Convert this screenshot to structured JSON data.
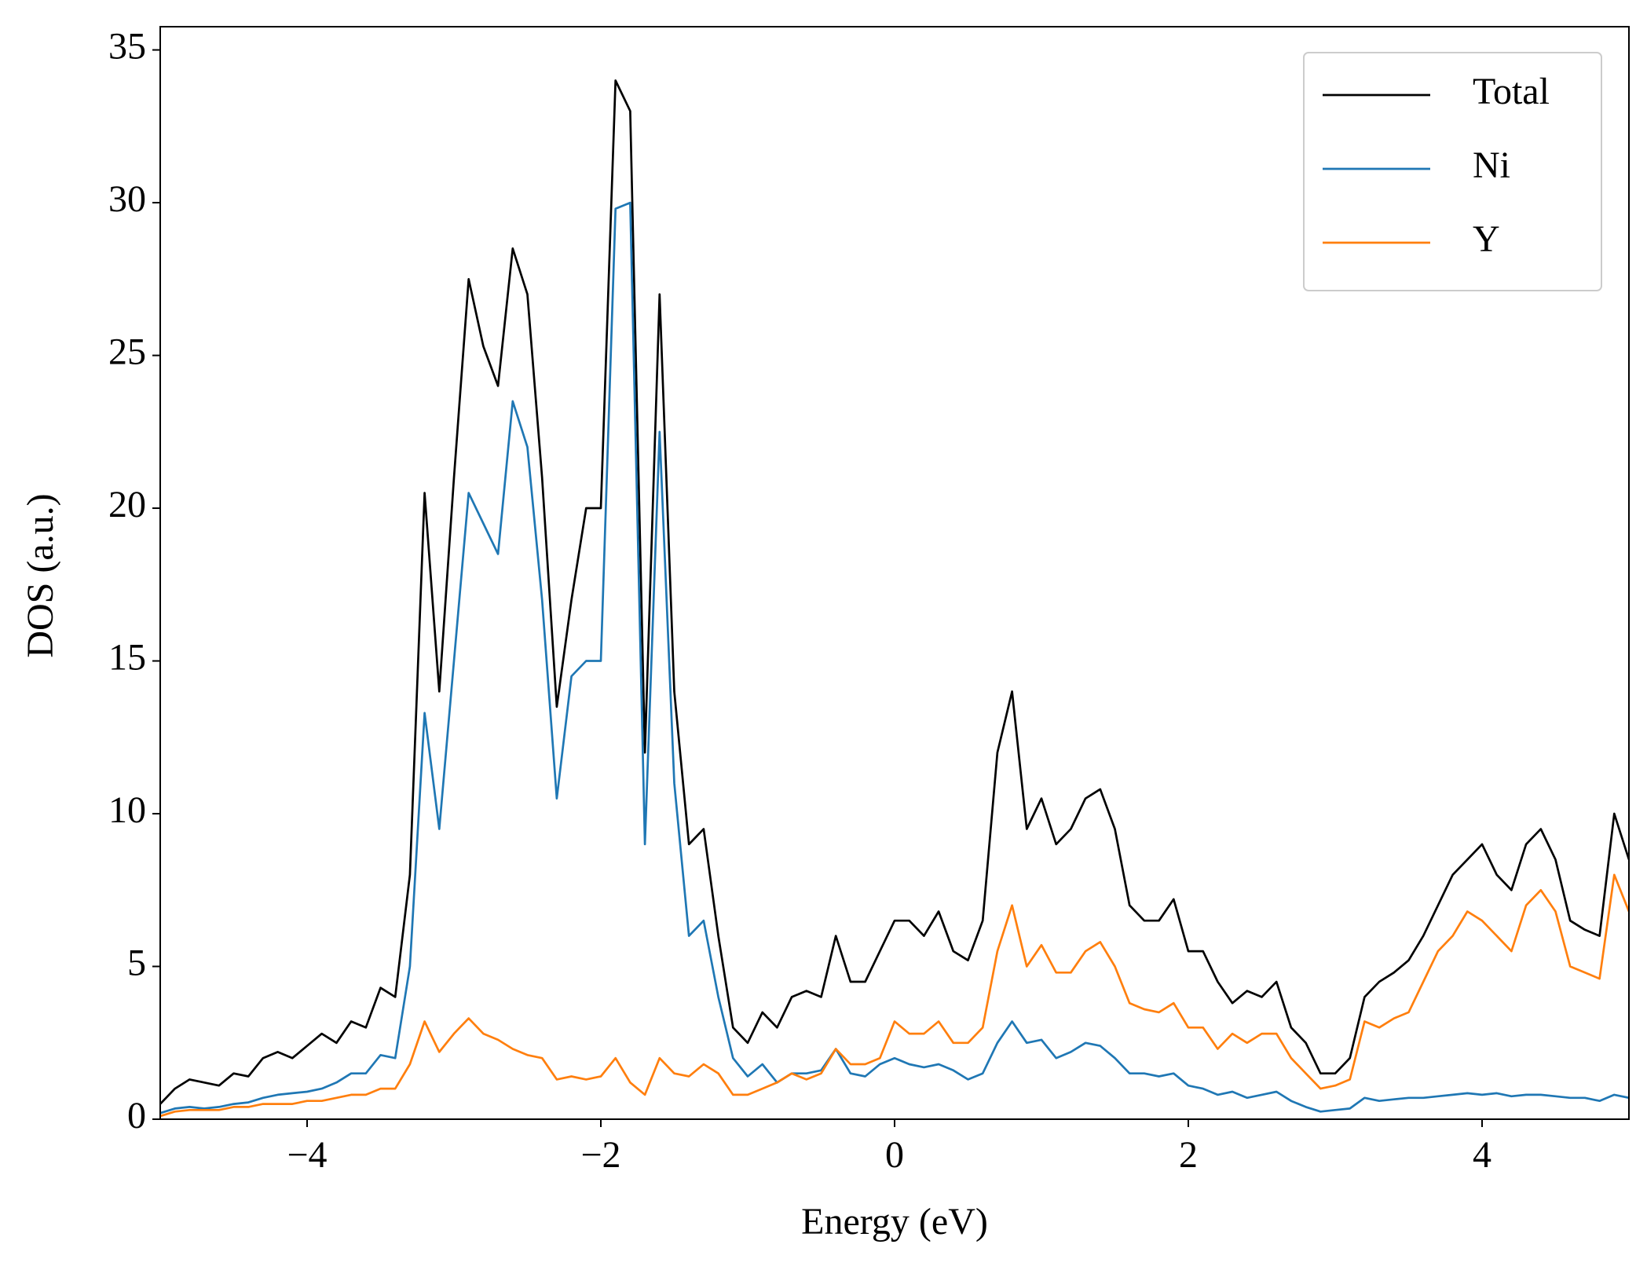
{
  "chart_data": {
    "type": "line",
    "xlabel": "Energy (eV)",
    "ylabel": "DOS (a.u.)",
    "x": [
      -5,
      -4.9,
      -4.8,
      -4.7,
      -4.6,
      -4.5,
      -4.4,
      -4.3,
      -4.2,
      -4.1,
      -4,
      -3.9,
      -3.8,
      -3.7,
      -3.6,
      -3.5,
      -3.4,
      -3.3,
      -3.2,
      -3.1,
      -3,
      -2.9,
      -2.8,
      -2.7,
      -2.6,
      -2.5,
      -2.4,
      -2.3,
      -2.2,
      -2.1,
      -2,
      -1.9,
      -1.8,
      -1.7,
      -1.6,
      -1.5,
      -1.4,
      -1.3,
      -1.2,
      -1.1,
      -1,
      -0.9,
      -0.8,
      -0.7,
      -0.6,
      -0.5,
      -0.4,
      -0.3,
      -0.2,
      -0.1,
      0,
      0.1,
      0.2,
      0.3,
      0.4,
      0.5,
      0.6,
      0.7,
      0.8,
      0.9,
      1,
      1.1,
      1.2,
      1.3,
      1.4,
      1.5,
      1.6,
      1.7,
      1.8,
      1.9,
      2,
      2.1,
      2.2,
      2.3,
      2.4,
      2.5,
      2.6,
      2.7,
      2.8,
      2.9,
      3,
      3.1,
      3.2,
      3.3,
      3.4,
      3.5,
      3.6,
      3.7,
      3.8,
      3.9,
      4,
      4.1,
      4.2,
      4.3,
      4.4,
      4.5,
      4.6,
      4.7,
      4.8,
      4.9,
      5
    ],
    "series": [
      {
        "name": "Total",
        "color": "#000000",
        "values": [
          0.5,
          1.0,
          1.3,
          1.2,
          1.1,
          1.5,
          1.4,
          2.0,
          2.2,
          2.0,
          2.4,
          2.8,
          2.5,
          3.2,
          3.0,
          4.3,
          4.0,
          8,
          20.5,
          14,
          21,
          27.5,
          25.3,
          24,
          28.5,
          27,
          21,
          13.5,
          17,
          20,
          20,
          34,
          33,
          12,
          27,
          14,
          9,
          9.5,
          6,
          3,
          2.5,
          3.5,
          3.0,
          4.0,
          4.2,
          4.0,
          6.0,
          4.5,
          4.5,
          5.5,
          6.5,
          6.5,
          6.0,
          6.8,
          5.5,
          5.2,
          6.5,
          12,
          14,
          9.5,
          10.5,
          9.0,
          9.5,
          10.5,
          10.8,
          9.5,
          7.0,
          6.5,
          6.5,
          7.2,
          5.5,
          5.5,
          4.5,
          3.8,
          4.2,
          4.0,
          4.5,
          3.0,
          2.5,
          1.5,
          1.5,
          2.0,
          4.0,
          4.5,
          4.8,
          5.2,
          6.0,
          7.0,
          8.0,
          8.5,
          9.0,
          8.0,
          7.5,
          9.0,
          9.5,
          8.5,
          6.5,
          6.2,
          6.0,
          10.0,
          8.5
        ]
      },
      {
        "name": "Ni",
        "color": "#1f77b4",
        "values": [
          0.2,
          0.35,
          0.4,
          0.35,
          0.4,
          0.5,
          0.55,
          0.7,
          0.8,
          0.85,
          0.9,
          1.0,
          1.2,
          1.5,
          1.5,
          2.1,
          2.0,
          5,
          13.3,
          9.5,
          15,
          20.5,
          19.5,
          18.5,
          23.5,
          22,
          17,
          10.5,
          14.5,
          15,
          15,
          29.8,
          30,
          9,
          22.5,
          11,
          6,
          6.5,
          4,
          2,
          1.4,
          1.8,
          1.2,
          1.5,
          1.5,
          1.6,
          2.3,
          1.5,
          1.4,
          1.8,
          2.0,
          1.8,
          1.7,
          1.8,
          1.6,
          1.3,
          1.5,
          2.5,
          3.2,
          2.5,
          2.6,
          2.0,
          2.2,
          2.5,
          2.4,
          2.0,
          1.5,
          1.5,
          1.4,
          1.5,
          1.1,
          1.0,
          0.8,
          0.9,
          0.7,
          0.8,
          0.9,
          0.6,
          0.4,
          0.25,
          0.3,
          0.35,
          0.7,
          0.6,
          0.65,
          0.7,
          0.7,
          0.75,
          0.8,
          0.85,
          0.8,
          0.85,
          0.75,
          0.8,
          0.8,
          0.75,
          0.7,
          0.7,
          0.6,
          0.8,
          0.7
        ]
      },
      {
        "name": "Y",
        "color": "#ff7f0e",
        "values": [
          0.1,
          0.25,
          0.3,
          0.3,
          0.3,
          0.4,
          0.4,
          0.5,
          0.5,
          0.5,
          0.6,
          0.6,
          0.7,
          0.8,
          0.8,
          1.0,
          1.0,
          1.8,
          3.2,
          2.2,
          2.8,
          3.3,
          2.8,
          2.6,
          2.3,
          2.1,
          2.0,
          1.3,
          1.4,
          1.3,
          1.4,
          2.0,
          1.2,
          0.8,
          2.0,
          1.5,
          1.4,
          1.8,
          1.5,
          0.8,
          0.8,
          1.0,
          1.2,
          1.5,
          1.3,
          1.5,
          2.3,
          1.8,
          1.8,
          2.0,
          3.2,
          2.8,
          2.8,
          3.2,
          2.5,
          2.5,
          3.0,
          5.5,
          7.0,
          5.0,
          5.7,
          4.8,
          4.8,
          5.5,
          5.8,
          5.0,
          3.8,
          3.6,
          3.5,
          3.8,
          3.0,
          3.0,
          2.3,
          2.8,
          2.5,
          2.8,
          2.8,
          2.0,
          1.5,
          1.0,
          1.1,
          1.3,
          3.2,
          3.0,
          3.3,
          3.5,
          4.5,
          5.5,
          6.0,
          6.8,
          6.5,
          6.0,
          5.5,
          7.0,
          7.5,
          6.8,
          5.0,
          4.8,
          4.6,
          8.0,
          6.8
        ]
      }
    ],
    "xlim": [
      -5,
      5
    ],
    "xticks": [
      {
        "value": -4,
        "label": "−4"
      },
      {
        "value": -2,
        "label": "−2"
      },
      0,
      2,
      4
    ],
    "ylim": [
      0,
      35.76
    ],
    "yticks": [
      0,
      5,
      10,
      15,
      20,
      25,
      30,
      35
    ],
    "legend": "upper right",
    "grid": false
  }
}
